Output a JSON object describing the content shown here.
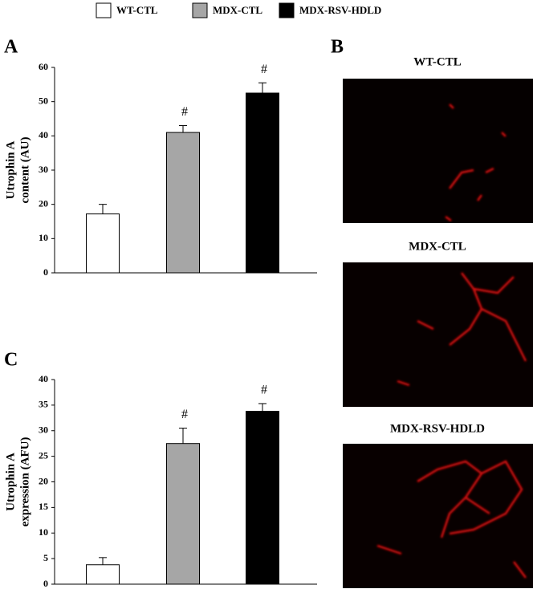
{
  "legend": [
    {
      "name": "WT-CTL",
      "color": "#ffffff"
    },
    {
      "name": "MDX-CTL",
      "color": "#a6a6a6"
    },
    {
      "name": "MDX-RSV-HDLD",
      "color": "#000000"
    }
  ],
  "chart_data": [
    {
      "type": "bar",
      "panel": "A",
      "ylabel": [
        "Utrophin A",
        "content (AU)"
      ],
      "values": [
        17.2,
        41,
        52.5
      ],
      "errors": [
        2.8,
        2,
        3
      ],
      "markers": [
        null,
        "#",
        "#"
      ],
      "colors": [
        "#ffffff",
        "#a6a6a6",
        "#000000"
      ],
      "ylim": [
        0,
        60
      ],
      "yticks": [
        0,
        10,
        20,
        30,
        40,
        50,
        60
      ]
    },
    {
      "type": "bar",
      "panel": "C",
      "ylabel": [
        "Utrophin A",
        "expression (AFU)"
      ],
      "values": [
        3.8,
        27.5,
        33.8
      ],
      "errors": [
        1.4,
        3,
        1.5
      ],
      "markers": [
        null,
        "#",
        "#"
      ],
      "colors": [
        "#ffffff",
        "#a6a6a6",
        "#000000"
      ],
      "ylim": [
        0,
        40
      ],
      "yticks": [
        0,
        5,
        10,
        15,
        20,
        25,
        30,
        35,
        40
      ]
    }
  ],
  "images": {
    "panel": "B",
    "titles": [
      "WT-CTL",
      "MDX-CTL",
      "MDX-RSV-HDLD"
    ]
  }
}
